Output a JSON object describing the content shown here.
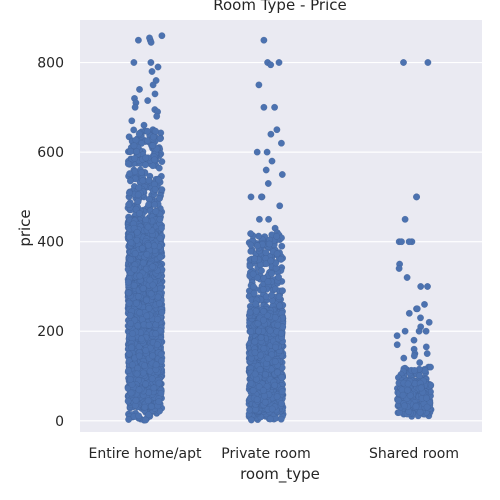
{
  "chart_data": {
    "type": "scatter",
    "subtype": "strip",
    "title": "Room Type - Price",
    "xlabel": "room_type",
    "ylabel": "price",
    "categories": [
      "Entire home/apt",
      "Private room",
      "Shared room"
    ],
    "ylim": [
      -25,
      895
    ],
    "yticks": [
      0,
      200,
      400,
      600,
      800
    ],
    "grid": true,
    "legend": "none",
    "colors": {
      "background": "#eaeaf2",
      "grid": "#ffffff",
      "points": "#4c72b0",
      "text": "#262626"
    },
    "series": [
      {
        "category": "Entire home/apt",
        "values": [
          850,
          850,
          855,
          860,
          845,
          800,
          800,
          790,
          780,
          760,
          750,
          740,
          730,
          720,
          715,
          710,
          700,
          695,
          690,
          680,
          670,
          660,
          650,
          640,
          630,
          620,
          610,
          600,
          590,
          580,
          570,
          560,
          550,
          540,
          530,
          520,
          510,
          500,
          490,
          480,
          470,
          460,
          450,
          440,
          430,
          420,
          410,
          400,
          390,
          380,
          370,
          360,
          350,
          340,
          330,
          320,
          310,
          300,
          290,
          280,
          270,
          260,
          250,
          240,
          230,
          220,
          210,
          200,
          190,
          180,
          170,
          160,
          150,
          140,
          130,
          120,
          110,
          100,
          90,
          80,
          70,
          60,
          50,
          40,
          30,
          20,
          15,
          10
        ],
        "mid_density_range": [
          0,
          650
        ],
        "dense_range": [
          30,
          450
        ]
      },
      {
        "category": "Private room",
        "values": [
          850,
          800,
          800,
          795,
          750,
          700,
          700,
          650,
          640,
          620,
          600,
          600,
          580,
          560,
          550,
          530,
          500,
          500,
          500,
          480,
          450,
          450,
          430,
          420,
          400,
          400,
          390,
          380,
          370,
          360,
          350,
          330,
          320,
          300,
          290,
          280,
          270,
          260,
          250,
          240,
          230,
          220,
          210,
          200,
          190,
          180,
          170,
          160,
          150,
          140,
          130,
          120,
          110,
          100,
          90,
          80,
          70,
          60,
          50,
          40,
          30,
          20,
          15,
          10
        ],
        "mid_density_range": [
          0,
          420
        ],
        "dense_range": [
          20,
          250
        ]
      },
      {
        "category": "Shared room",
        "values": [
          800,
          800,
          500,
          500,
          450,
          400,
          400,
          400,
          400,
          350,
          340,
          320,
          300,
          300,
          260,
          250,
          250,
          240,
          230,
          220,
          210,
          200,
          200,
          200,
          190,
          180,
          170,
          165,
          160,
          150,
          150,
          145,
          140,
          130,
          120,
          115,
          110,
          105,
          100,
          100,
          95,
          90,
          85,
          80,
          80,
          75,
          70,
          65,
          60,
          60,
          55,
          50,
          50,
          45,
          45,
          40,
          40,
          35,
          35,
          30,
          30,
          25,
          25,
          20,
          20,
          15,
          15,
          10
        ],
        "mid_density_range": [
          10,
          120
        ],
        "dense_range": [
          15,
          90
        ]
      }
    ]
  }
}
